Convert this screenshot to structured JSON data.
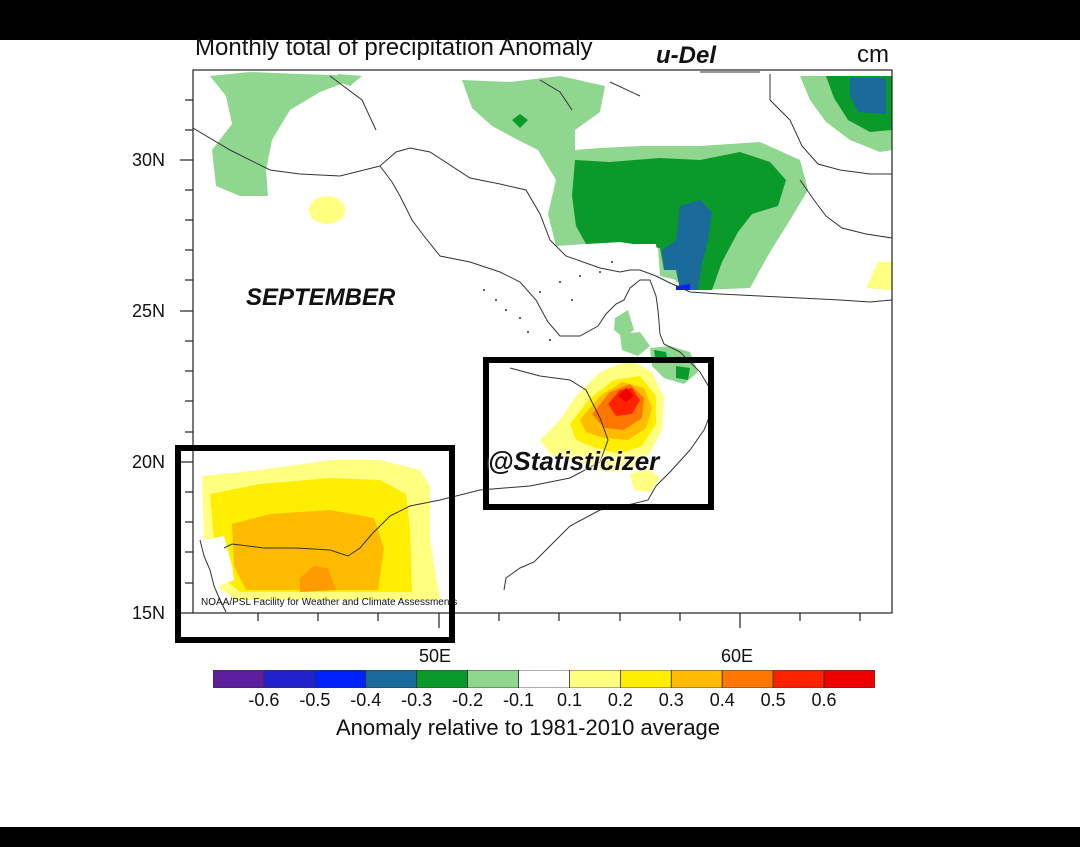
{
  "title": "Monthly total of precipitation Anomaly",
  "source_tag": "u-Del",
  "unit": "cm",
  "month_label": "SEPTEMBER",
  "watermark": "@Statisticizer",
  "credit": "NOAA/PSL Facility for Weather and Climate Assessments",
  "map": {
    "lat_ticks": [
      "30N",
      "25N",
      "20N",
      "15N"
    ],
    "lon_ticks": [
      "50E",
      "60E"
    ],
    "highlight_boxes": [
      "southwest-box",
      "oman-box"
    ]
  },
  "colorbar": {
    "title": "Anomaly relative to 1981-2010 average",
    "labels": [
      "-0.6",
      "-0.5",
      "-0.4",
      "-0.3",
      "-0.2",
      "-0.1",
      "0.1",
      "0.2",
      "0.3",
      "0.4",
      "0.5",
      "0.6"
    ],
    "colors": [
      "#5e1f9e",
      "#2222cc",
      "#0022ff",
      "#1a6a9a",
      "#0a9a2a",
      "#8fd68f",
      "#ffffff",
      "#ffff80",
      "#ffee00",
      "#ffbb00",
      "#ff7700",
      "#ff2200",
      "#ee0000"
    ]
  }
}
